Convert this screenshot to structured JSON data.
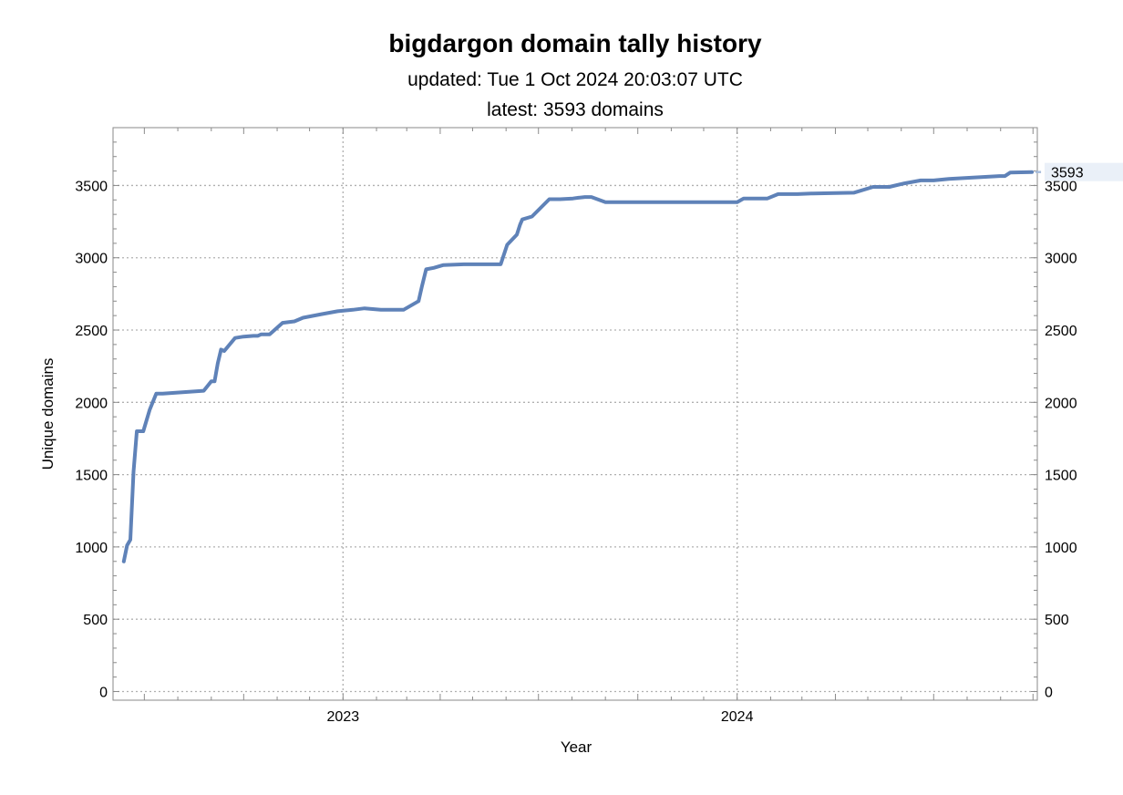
{
  "chart_data": {
    "type": "line",
    "title": "bigdargon domain tally history",
    "subtitle_lines": [
      "updated: Tue 1 Oct 2024 20:03:07 UTC",
      "latest: 3593 domains"
    ],
    "xlabel": "Year",
    "ylabel": "Unique domains",
    "x_ticks": [
      "2023",
      "2024"
    ],
    "y_ticks": [
      0,
      500,
      1000,
      1500,
      2000,
      2500,
      3000,
      3500
    ],
    "ylim": [
      -60,
      3900
    ],
    "xlim": [
      "2022-06-02",
      "2024-10-05"
    ],
    "grid": true,
    "line_color": "#5f82b8",
    "end_label": "3593",
    "series": [
      {
        "x": [
          "2022-06-12",
          "2022-06-15",
          "2022-06-18",
          "2022-06-21",
          "2022-06-24",
          "2022-06-30",
          "2022-07-06",
          "2022-07-12",
          "2022-07-15",
          "2022-07-18",
          "2022-08-25",
          "2022-09-01",
          "2022-09-04",
          "2022-09-07",
          "2022-09-10",
          "2022-09-13",
          "2022-09-23",
          "2022-10-01",
          "2022-10-10",
          "2022-10-14",
          "2022-10-17",
          "2022-10-25",
          "2022-11-06",
          "2022-11-17",
          "2022-11-25",
          "2022-12-12",
          "2022-12-27",
          "2023-01-10",
          "2023-01-21",
          "2023-02-05",
          "2023-02-12",
          "2023-02-26",
          "2023-03-12",
          "2023-03-15",
          "2023-03-19",
          "2023-03-26",
          "2023-04-04",
          "2023-04-23",
          "2023-05-16",
          "2023-05-27",
          "2023-06-02",
          "2023-06-11",
          "2023-06-14",
          "2023-06-16",
          "2023-06-25",
          "2023-07-11",
          "2023-07-21",
          "2023-08-02",
          "2023-08-07",
          "2023-08-13",
          "2023-08-19",
          "2023-09-01",
          "2024-01-01",
          "2024-01-07",
          "2024-01-29",
          "2024-02-08",
          "2024-02-26",
          "2024-03-11",
          "2024-04-18",
          "2024-05-06",
          "2024-05-21",
          "2024-06-04",
          "2024-06-19",
          "2024-07-01",
          "2024-07-15",
          "2024-08-31",
          "2024-09-05",
          "2024-09-10",
          "2024-09-30"
        ],
        "values": [
          900,
          1010,
          1050,
          1520,
          1800,
          1800,
          1950,
          2060,
          2060,
          2060,
          2080,
          2145,
          2145,
          2270,
          2365,
          2355,
          2445,
          2455,
          2460,
          2460,
          2470,
          2470,
          2550,
          2560,
          2585,
          2610,
          2630,
          2640,
          2650,
          2640,
          2640,
          2640,
          2700,
          2800,
          2920,
          2930,
          2950,
          2955,
          2955,
          2955,
          3090,
          3160,
          3230,
          3265,
          3285,
          3405,
          3405,
          3410,
          3415,
          3420,
          3420,
          3385,
          3385,
          3410,
          3410,
          3440,
          3440,
          3445,
          3450,
          3490,
          3490,
          3515,
          3535,
          3535,
          3545,
          3565,
          3565,
          3590,
          3593
        ]
      }
    ]
  }
}
